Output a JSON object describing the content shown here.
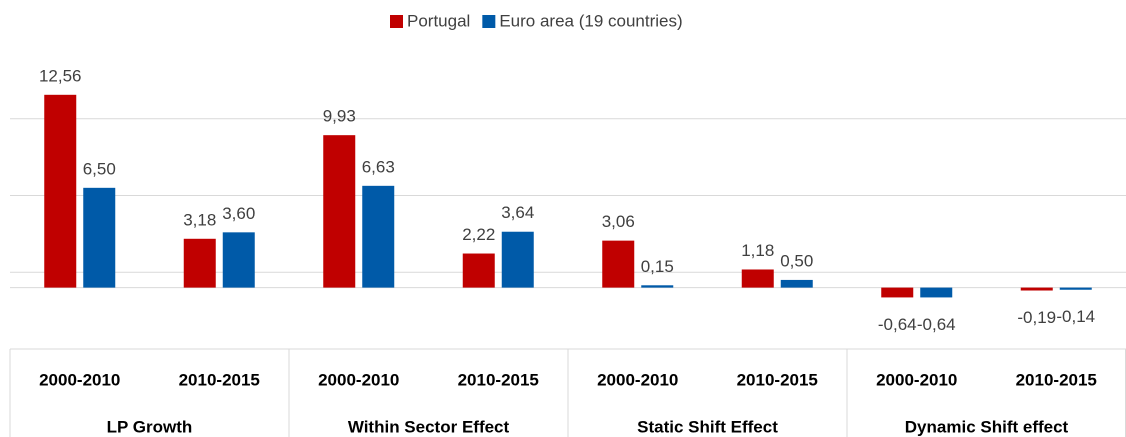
{
  "chart_data": {
    "type": "bar",
    "groups": [
      "LP Growth",
      "Within Sector Effect",
      "Static Shift Effect",
      "Dynamic Shift effect"
    ],
    "categories": [
      "2000-2010",
      "2010-2015",
      "2000-2010",
      "2010-2015",
      "2000-2010",
      "2010-2015",
      "2000-2010",
      "2010-2015"
    ],
    "series": [
      {
        "name": "Portugal",
        "color": "#c00000",
        "values": [
          12.56,
          3.18,
          9.93,
          2.22,
          3.06,
          1.18,
          -0.64,
          -0.19
        ],
        "value_labels": [
          "12,56",
          "3,18",
          "9,93",
          "2,22",
          "3,06",
          "1,18",
          "-0,64",
          "-0,19"
        ]
      },
      {
        "name": "Euro area (19 countries)",
        "color": "#005aa8",
        "values": [
          6.5,
          3.6,
          6.63,
          3.64,
          0.15,
          0.5,
          -0.64,
          -0.14
        ],
        "value_labels": [
          "6,50",
          "3,60",
          "6,63",
          "3,64",
          "0,15",
          "0,50",
          "-0,64",
          "-0,14"
        ]
      }
    ],
    "ylim": [
      -4,
      16
    ],
    "yticks": [
      1,
      6,
      11
    ],
    "grid": true,
    "legend": "top"
  }
}
